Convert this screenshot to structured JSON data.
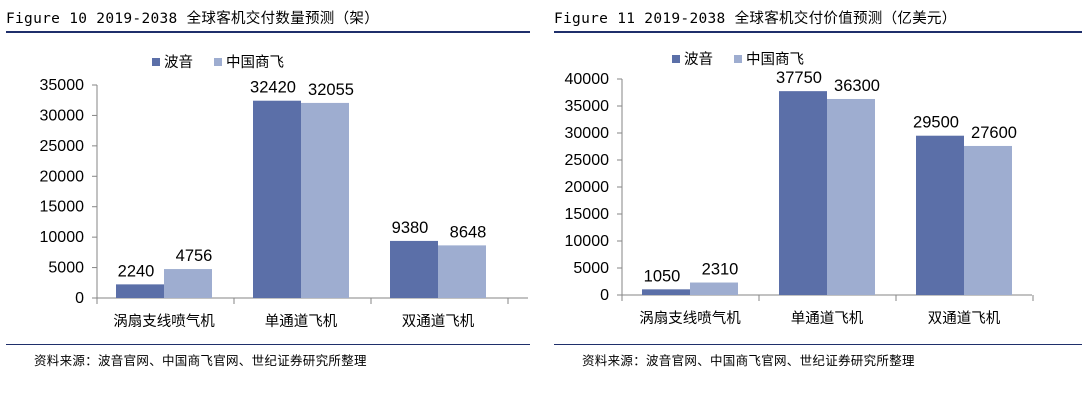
{
  "figures": [
    {
      "title": "Figure 10 2019-2038 全球客机交付数量预测（架）",
      "source": "资料来源：波音官网、中国商飞官网、世纪证券研究所整理"
    },
    {
      "title": "Figure 11 2019-2038 全球客机交付价值预测（亿美元）",
      "source": "资料来源：波音官网、中国商飞官网、世纪证券研究所整理"
    }
  ],
  "chart_data": [
    {
      "type": "bar",
      "title": "",
      "xlabel": "",
      "ylabel": "",
      "categories": [
        "涡扇支线喷气机",
        "单通道飞机",
        "双通道飞机"
      ],
      "series": [
        {
          "name": "波音",
          "values": [
            2240,
            32420,
            9380
          ],
          "color": "#5b6fa8"
        },
        {
          "name": "中国商飞",
          "values": [
            4756,
            32055,
            8648
          ],
          "color": "#9eadd0"
        }
      ],
      "ylim": [
        0,
        35000
      ],
      "yticks": [
        0,
        5000,
        10000,
        15000,
        20000,
        25000,
        30000,
        35000
      ],
      "legend": "top-center",
      "grid": false
    },
    {
      "type": "bar",
      "title": "",
      "xlabel": "",
      "ylabel": "",
      "categories": [
        "涡扇支线喷气机",
        "单通道飞机",
        "双通道飞机"
      ],
      "series": [
        {
          "name": "波音",
          "values": [
            1050,
            37750,
            29500
          ],
          "color": "#5b6fa8"
        },
        {
          "name": "中国商飞",
          "values": [
            2310,
            36300,
            27600
          ],
          "color": "#9eadd0"
        }
      ],
      "ylim": [
        0,
        40000
      ],
      "yticks": [
        0,
        5000,
        10000,
        15000,
        20000,
        25000,
        30000,
        35000,
        40000
      ],
      "legend": "top-center",
      "grid": false
    }
  ]
}
